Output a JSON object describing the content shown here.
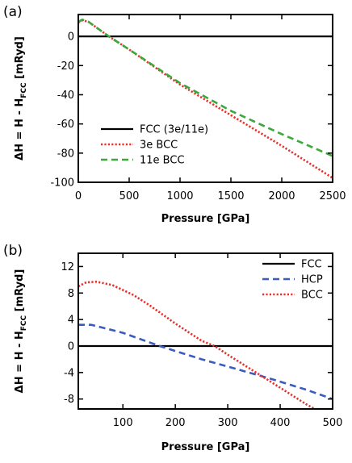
{
  "chart_data": [
    {
      "panel_label": "(a)",
      "type": "line",
      "xlabel": "Pressure [GPa]",
      "ylabel": "ΔH = H - H",
      "ylabel_sub": "FCC",
      "ylabel_unit": " [mRyd]",
      "xlim": [
        0,
        2500
      ],
      "ylim": [
        -100,
        15
      ],
      "xticks": [
        0,
        500,
        1000,
        1500,
        2000,
        2500
      ],
      "yticks": [
        0,
        -20,
        -40,
        -60,
        -80,
        -100
      ],
      "legend_position": "bottom-left",
      "series": [
        {
          "name": "FCC (3e/11e)",
          "color": "#000000",
          "style": "solid",
          "x": [
            0,
            2500
          ],
          "y": [
            0,
            0
          ]
        },
        {
          "name": "3e BCC",
          "color": "#e8302a",
          "style": "dotted",
          "x": [
            0,
            40,
            100,
            200,
            300,
            500,
            1000,
            1500,
            2000,
            2500
          ],
          "y": [
            9.5,
            11,
            10,
            5,
            0,
            -9,
            -33,
            -54,
            -75,
            -97
          ]
        },
        {
          "name": "11e BCC",
          "color": "#3aa83a",
          "style": "dashed",
          "x": [
            0,
            40,
            100,
            200,
            300,
            500,
            1000,
            1500,
            2000,
            2500
          ],
          "y": [
            10,
            11.5,
            10,
            5,
            0,
            -9,
            -32,
            -51,
            -67,
            -82
          ]
        }
      ]
    },
    {
      "panel_label": "(b)",
      "type": "line",
      "xlabel": "Pressure [GPa]",
      "ylabel": "ΔH = H - H",
      "ylabel_sub": "FCC",
      "ylabel_unit": " [mRyd]",
      "xlim": [
        15,
        500
      ],
      "ylim": [
        -9.5,
        14
      ],
      "xticks": [
        100,
        200,
        300,
        400,
        500
      ],
      "yticks": [
        12,
        8,
        4,
        0,
        -4,
        -8
      ],
      "legend_position": "top-right",
      "series": [
        {
          "name": "FCC",
          "color": "#000000",
          "style": "solid",
          "x": [
            15,
            500
          ],
          "y": [
            0,
            0
          ]
        },
        {
          "name": "HCP",
          "color": "#3b5bbf",
          "style": "dashed",
          "x": [
            15,
            40,
            100,
            170,
            250,
            300,
            380,
            450,
            500
          ],
          "y": [
            3.2,
            3.2,
            2.0,
            0,
            -2.0,
            -3.1,
            -4.9,
            -6.6,
            -8.0
          ]
        },
        {
          "name": "BCC",
          "color": "#e8302a",
          "style": "dotted",
          "x": [
            15,
            30,
            50,
            80,
            120,
            150,
            200,
            250,
            275,
            300,
            350,
            400,
            450,
            500
          ],
          "y": [
            9.0,
            9.6,
            9.7,
            9.2,
            7.7,
            6.2,
            3.4,
            0.8,
            0,
            -1.3,
            -3.8,
            -6.3,
            -8.8,
            -11.0
          ]
        }
      ]
    }
  ]
}
